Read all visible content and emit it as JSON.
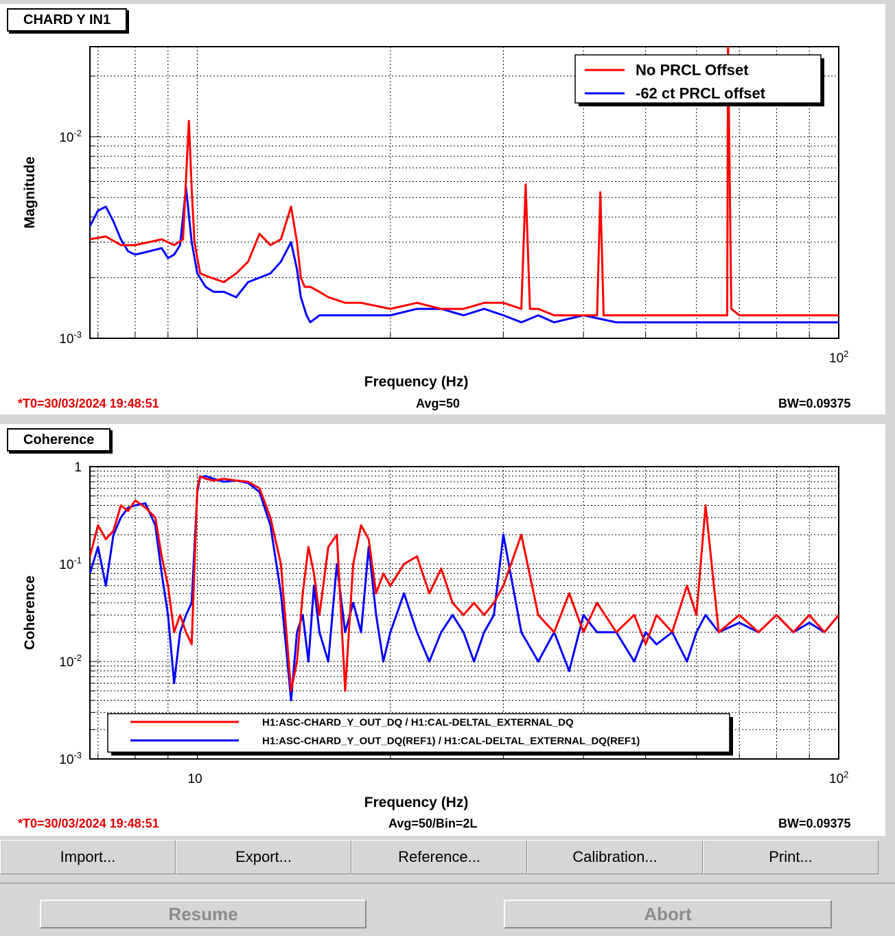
{
  "panels": [
    {
      "tab_title": "CHARD Y IN1",
      "t0": "*T0=30/03/2024 19:48:51",
      "avg": "Avg=50",
      "bw": "BW=0.09375"
    },
    {
      "tab_title": "Coherence",
      "t0": "*T0=30/03/2024 19:48:51",
      "avg": "Avg=50/Bin=2L",
      "bw": "BW=0.09375"
    }
  ],
  "toolbar": {
    "import": "Import...",
    "export": "Export...",
    "reference": "Reference...",
    "calibration": "Calibration...",
    "print": "Print..."
  },
  "controls": {
    "resume": "Resume",
    "abort": "Abort"
  },
  "colors": {
    "series_red": "#ff0000",
    "series_blue": "#0000ff",
    "t0_text": "#e00000"
  },
  "chart_data": [
    {
      "type": "line",
      "xscale": "log",
      "yscale": "log",
      "xlim": [
        6.8,
        100
      ],
      "ylim": [
        0.001,
        0.028
      ],
      "xlabel": "Frequency (Hz)",
      "ylabel": "Magnitude",
      "x_ticks": [
        {
          "v": 100,
          "base": "10",
          "exp": "2"
        }
      ],
      "y_ticks": [
        {
          "v": 0.01,
          "base": "10",
          "exp": "-2"
        },
        {
          "v": 0.001,
          "base": "10",
          "exp": "-3"
        }
      ],
      "grid": true,
      "legend": "top-right",
      "series": [
        {
          "name": "No PRCL Offset",
          "color": "#ff0000",
          "x": [
            6.8,
            7.2,
            7.6,
            8.0,
            8.4,
            8.8,
            9.2,
            9.5,
            9.7,
            9.8,
            9.9,
            10.1,
            10.5,
            11.0,
            11.5,
            12.0,
            12.5,
            13.0,
            13.5,
            14.0,
            14.3,
            14.5,
            14.7,
            15.0,
            15.5,
            16,
            17,
            18,
            20,
            22,
            24,
            26,
            28,
            30,
            32,
            32.5,
            33,
            34,
            36,
            40,
            42,
            42.5,
            43,
            45,
            50,
            55,
            60,
            65,
            67,
            67.2,
            68,
            70,
            75,
            80,
            85,
            90,
            95,
            100
          ],
          "values": [
            0.0031,
            0.0032,
            0.0029,
            0.0029,
            0.003,
            0.0031,
            0.0029,
            0.0031,
            0.012,
            0.0055,
            0.003,
            0.0021,
            0.002,
            0.0019,
            0.0021,
            0.0024,
            0.0033,
            0.0029,
            0.0031,
            0.0045,
            0.003,
            0.002,
            0.0018,
            0.0018,
            0.0017,
            0.0016,
            0.0015,
            0.0015,
            0.0014,
            0.0015,
            0.0014,
            0.0014,
            0.0015,
            0.0015,
            0.0014,
            0.0058,
            0.0014,
            0.0014,
            0.0013,
            0.0013,
            0.0013,
            0.0053,
            0.0013,
            0.0013,
            0.0013,
            0.0013,
            0.0013,
            0.0013,
            0.0013,
            0.03,
            0.0014,
            0.0013,
            0.0013,
            0.0013,
            0.0013,
            0.0013,
            0.0013,
            0.0013
          ]
        },
        {
          "name": "-62 ct PRCL offset",
          "color": "#0000ff",
          "x": [
            6.8,
            7.0,
            7.2,
            7.4,
            7.6,
            7.8,
            8.0,
            8.4,
            8.8,
            9.0,
            9.2,
            9.4,
            9.6,
            9.8,
            10.0,
            10.3,
            10.6,
            11.0,
            11.5,
            12.0,
            12.5,
            13.0,
            13.5,
            14.0,
            14.3,
            14.5,
            14.8,
            15.0,
            15.5,
            16,
            17,
            18,
            20,
            22,
            24,
            26,
            28,
            30,
            32,
            34,
            36,
            40,
            45,
            50,
            55,
            60,
            65,
            70,
            75,
            80,
            85,
            90,
            95,
            100
          ],
          "values": [
            0.0036,
            0.0043,
            0.0045,
            0.0038,
            0.0031,
            0.0027,
            0.0026,
            0.0027,
            0.0028,
            0.0025,
            0.0026,
            0.0029,
            0.0056,
            0.003,
            0.0021,
            0.0018,
            0.0017,
            0.0017,
            0.0016,
            0.0019,
            0.002,
            0.0021,
            0.0024,
            0.003,
            0.0022,
            0.0016,
            0.0013,
            0.0012,
            0.0013,
            0.0013,
            0.0013,
            0.0013,
            0.0013,
            0.0014,
            0.0014,
            0.0013,
            0.0014,
            0.0013,
            0.0012,
            0.0013,
            0.0012,
            0.0013,
            0.0012,
            0.0012,
            0.0012,
            0.0012,
            0.0012,
            0.0012,
            0.0012,
            0.0012,
            0.0012,
            0.0012,
            0.0012,
            0.0012
          ]
        }
      ]
    },
    {
      "type": "line",
      "xscale": "log",
      "yscale": "log",
      "xlim": [
        6.8,
        100
      ],
      "ylim": [
        0.001,
        1
      ],
      "xlabel": "Frequency (Hz)",
      "ylabel": "Coherence",
      "x_ticks": [
        {
          "v": 10,
          "base": "10",
          "exp": ""
        },
        {
          "v": 100,
          "base": "10",
          "exp": "2"
        }
      ],
      "y_ticks": [
        {
          "v": 1,
          "base": "1",
          "exp": ""
        },
        {
          "v": 0.1,
          "base": "10",
          "exp": "-1"
        },
        {
          "v": 0.01,
          "base": "10",
          "exp": "-2"
        },
        {
          "v": 0.001,
          "base": "10",
          "exp": "-3"
        }
      ],
      "grid": true,
      "legend": "bottom-left",
      "series": [
        {
          "name": "H1:ASC-CHARD_Y_OUT_DQ / H1:CAL-DELTAL_EXTERNAL_DQ",
          "color": "#ff0000",
          "x": [
            6.8,
            7.0,
            7.2,
            7.4,
            7.6,
            7.8,
            8.0,
            8.3,
            8.6,
            8.8,
            9.0,
            9.2,
            9.4,
            9.6,
            9.8,
            10.0,
            10.1,
            10.3,
            10.6,
            11,
            11.5,
            12,
            12.5,
            13,
            13.5,
            14,
            14.3,
            14.6,
            14.9,
            15.2,
            15.5,
            16,
            16.5,
            17,
            17.5,
            18,
            18.5,
            19,
            19.5,
            20,
            21,
            22,
            23,
            24,
            25,
            26,
            27,
            28,
            29,
            30,
            32,
            34,
            36,
            38,
            40,
            42,
            45,
            48,
            50,
            52,
            55,
            58,
            60,
            62,
            65,
            70,
            75,
            80,
            85,
            90,
            95,
            100
          ],
          "values": [
            0.12,
            0.25,
            0.18,
            0.22,
            0.4,
            0.35,
            0.45,
            0.38,
            0.3,
            0.12,
            0.06,
            0.02,
            0.03,
            0.02,
            0.015,
            0.6,
            0.8,
            0.75,
            0.72,
            0.75,
            0.72,
            0.7,
            0.6,
            0.3,
            0.1,
            0.005,
            0.01,
            0.05,
            0.15,
            0.08,
            0.03,
            0.15,
            0.2,
            0.005,
            0.1,
            0.25,
            0.18,
            0.05,
            0.08,
            0.06,
            0.1,
            0.12,
            0.05,
            0.09,
            0.04,
            0.03,
            0.04,
            0.03,
            0.04,
            0.06,
            0.2,
            0.03,
            0.02,
            0.05,
            0.02,
            0.04,
            0.02,
            0.03,
            0.015,
            0.03,
            0.02,
            0.06,
            0.03,
            0.4,
            0.02,
            0.03,
            0.02,
            0.03,
            0.02,
            0.03,
            0.02,
            0.03
          ]
        },
        {
          "name": "H1:ASC-CHARD_Y_OUT_DQ(REF1) / H1:CAL-DELTAL_EXTERNAL_DQ(REF1)",
          "color": "#0000ff",
          "x": [
            6.8,
            7.0,
            7.2,
            7.4,
            7.6,
            7.8,
            8.0,
            8.3,
            8.6,
            8.8,
            9.0,
            9.2,
            9.4,
            9.6,
            9.8,
            10.0,
            10.1,
            10.3,
            10.6,
            11,
            11.5,
            12,
            12.5,
            13,
            13.5,
            14,
            14.3,
            14.6,
            14.9,
            15.2,
            15.5,
            16,
            16.5,
            17,
            17.5,
            18,
            18.5,
            19,
            19.5,
            20,
            21,
            22,
            23,
            24,
            25,
            26,
            27,
            28,
            29,
            30,
            32,
            34,
            36,
            38,
            40,
            42,
            45,
            48,
            50,
            52,
            55,
            58,
            60,
            62,
            65,
            70,
            75,
            80,
            85,
            90,
            95,
            100
          ],
          "values": [
            0.08,
            0.15,
            0.06,
            0.2,
            0.3,
            0.38,
            0.4,
            0.42,
            0.25,
            0.08,
            0.03,
            0.006,
            0.02,
            0.03,
            0.04,
            0.55,
            0.78,
            0.8,
            0.75,
            0.7,
            0.72,
            0.68,
            0.55,
            0.25,
            0.05,
            0.004,
            0.02,
            0.03,
            0.01,
            0.06,
            0.02,
            0.01,
            0.1,
            0.02,
            0.04,
            0.02,
            0.15,
            0.03,
            0.01,
            0.02,
            0.05,
            0.02,
            0.01,
            0.02,
            0.03,
            0.02,
            0.01,
            0.02,
            0.03,
            0.2,
            0.02,
            0.01,
            0.02,
            0.008,
            0.03,
            0.02,
            0.02,
            0.01,
            0.02,
            0.015,
            0.02,
            0.01,
            0.02,
            0.03,
            0.02,
            0.025,
            0.02,
            0.03,
            0.02,
            0.025,
            0.02,
            0.03
          ]
        }
      ]
    }
  ]
}
